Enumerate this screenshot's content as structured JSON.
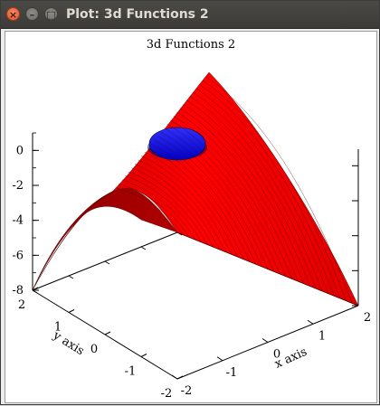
{
  "window": {
    "title": "Plot: 3d Functions 2",
    "close_glyph": "×",
    "min_glyph": "–",
    "max_glyph": "□"
  },
  "chart_data": {
    "type": "surface3d",
    "title": "3d Functions 2",
    "xlabel": "x axis",
    "ylabel": "y axis",
    "x_ticks": [
      "-2",
      "-1",
      "0",
      "1",
      "2"
    ],
    "y_ticks": [
      "-2",
      "-1",
      "0",
      "1",
      "2"
    ],
    "z_ticks": [
      "-8",
      "-6",
      "-4",
      "-2",
      "0"
    ],
    "xlim": [
      -2,
      2
    ],
    "ylim": [
      -2,
      2
    ],
    "zlim": [
      -8,
      1
    ],
    "series": [
      {
        "surface_function": "-(x^2) - (y^2)",
        "color": "#ff0000"
      },
      {
        "surface_function": "sphere",
        "color": "#0000ff"
      }
    ]
  }
}
